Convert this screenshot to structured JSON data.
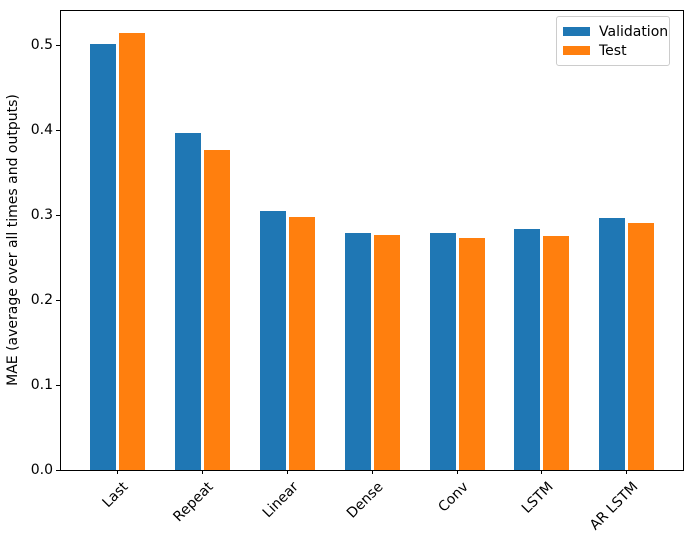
{
  "chart_data": {
    "type": "bar",
    "title": "",
    "xlabel": "",
    "ylabel": "MAE (average over all times and outputs)",
    "categories": [
      "Last",
      "Repeat",
      "Linear",
      "Dense",
      "Conv",
      "LSTM",
      "AR LSTM"
    ],
    "series": [
      {
        "name": "Validation",
        "color": "#1f77b4",
        "values": [
          0.501,
          0.396,
          0.305,
          0.279,
          0.279,
          0.284,
          0.297
        ]
      },
      {
        "name": "Test",
        "color": "#ff7f0e",
        "values": [
          0.514,
          0.377,
          0.298,
          0.276,
          0.273,
          0.275,
          0.291
        ]
      }
    ],
    "ylim": [
      0.0,
      0.54
    ],
    "yticks": [
      0.0,
      0.1,
      0.2,
      0.3,
      0.4,
      0.5
    ],
    "ytick_labels": [
      "0.0",
      "0.1",
      "0.2",
      "0.3",
      "0.4",
      "0.5"
    ],
    "xtick_rotation": 45,
    "grid": false,
    "legend_position": "upper right",
    "spine_color": "#000000"
  }
}
